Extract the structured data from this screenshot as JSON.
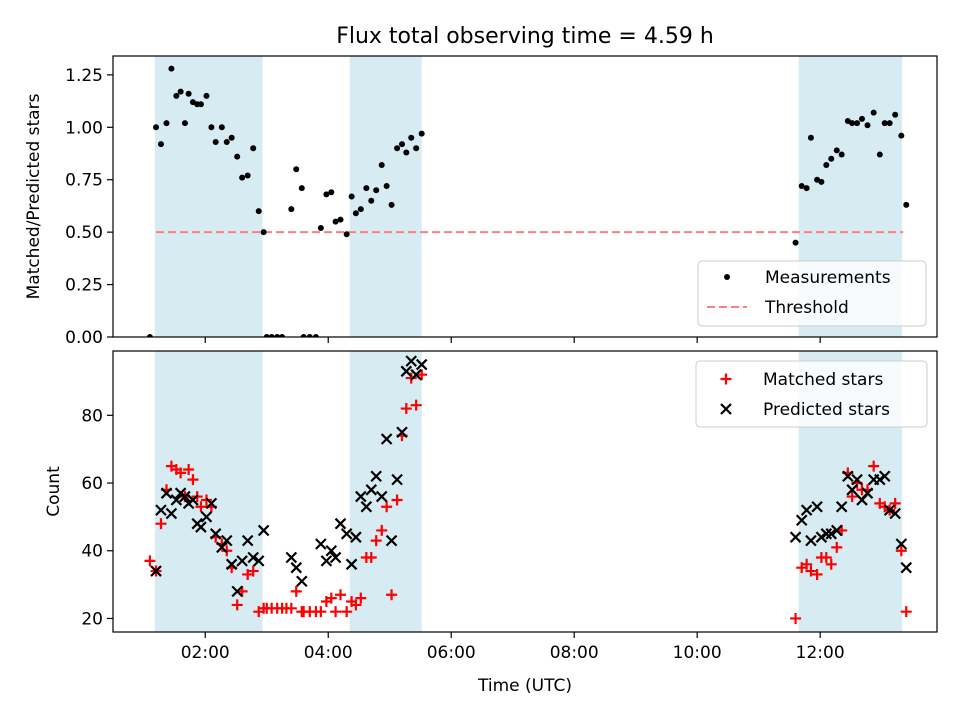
{
  "figure": {
    "title": "Flux total observing time = 4.59 h"
  },
  "chart_data": [
    {
      "type": "scatter",
      "title": "Flux total observing time = 4.59 h",
      "ylabel": "Matched/Predicted stars",
      "xlabel": "",
      "xlim": [
        0.5,
        13.9
      ],
      "ylim": [
        0.0,
        1.34
      ],
      "yticks": [
        0.0,
        0.25,
        0.5,
        0.75,
        1.0,
        1.25
      ],
      "ytick_labels": [
        "0.00",
        "0.25",
        "0.50",
        "0.75",
        "1.00",
        "1.25"
      ],
      "xticks": [
        2,
        4,
        6,
        8,
        10,
        12
      ],
      "shaded_intervals": [
        [
          1.18,
          2.93
        ],
        [
          4.35,
          5.52
        ],
        [
          11.65,
          13.33
        ]
      ],
      "threshold": 0.5,
      "legend": {
        "position": "lower right",
        "entries": [
          "Measurements",
          "Threshold"
        ]
      },
      "colors": {
        "measurements": "#000000",
        "threshold": "#ff7f7f",
        "shade": "#add8e6"
      },
      "series": [
        {
          "name": "Measurements",
          "points": [
            [
              1.1,
              0.0
            ],
            [
              1.2,
              1.0
            ],
            [
              1.28,
              0.92
            ],
            [
              1.37,
              1.02
            ],
            [
              1.45,
              1.28
            ],
            [
              1.53,
              1.15
            ],
            [
              1.6,
              1.17
            ],
            [
              1.67,
              1.02
            ],
            [
              1.73,
              1.16
            ],
            [
              1.8,
              1.12
            ],
            [
              1.87,
              1.11
            ],
            [
              1.93,
              1.11
            ],
            [
              2.02,
              1.15
            ],
            [
              2.1,
              1.0
            ],
            [
              2.17,
              0.93
            ],
            [
              2.27,
              1.0
            ],
            [
              2.35,
              0.93
            ],
            [
              2.43,
              0.95
            ],
            [
              2.52,
              0.86
            ],
            [
              2.6,
              0.76
            ],
            [
              2.69,
              0.77
            ],
            [
              2.78,
              0.9
            ],
            [
              2.87,
              0.6
            ],
            [
              2.95,
              0.5
            ],
            [
              3.0,
              0.0
            ],
            [
              3.08,
              0.0
            ],
            [
              3.17,
              0.0
            ],
            [
              3.25,
              0.0
            ],
            [
              3.4,
              0.61
            ],
            [
              3.48,
              0.8
            ],
            [
              3.57,
              0.71
            ],
            [
              3.6,
              0.0
            ],
            [
              3.7,
              0.0
            ],
            [
              3.8,
              0.0
            ],
            [
              3.88,
              0.52
            ],
            [
              3.97,
              0.68
            ],
            [
              4.05,
              0.69
            ],
            [
              4.12,
              0.55
            ],
            [
              4.2,
              0.56
            ],
            [
              4.3,
              0.49
            ],
            [
              4.38,
              0.67
            ],
            [
              4.45,
              0.59
            ],
            [
              4.53,
              0.61
            ],
            [
              4.62,
              0.71
            ],
            [
              4.7,
              0.65
            ],
            [
              4.78,
              0.7
            ],
            [
              4.87,
              0.82
            ],
            [
              4.95,
              0.72
            ],
            [
              5.03,
              0.63
            ],
            [
              5.12,
              0.9
            ],
            [
              5.2,
              0.92
            ],
            [
              5.27,
              0.88
            ],
            [
              5.35,
              0.95
            ],
            [
              5.43,
              0.9
            ],
            [
              5.52,
              0.97
            ],
            [
              11.6,
              0.45
            ],
            [
              11.7,
              0.72
            ],
            [
              11.78,
              0.71
            ],
            [
              11.85,
              0.95
            ],
            [
              11.95,
              0.75
            ],
            [
              12.02,
              0.74
            ],
            [
              12.1,
              0.82
            ],
            [
              12.18,
              0.85
            ],
            [
              12.27,
              0.89
            ],
            [
              12.35,
              0.87
            ],
            [
              12.45,
              1.03
            ],
            [
              12.52,
              1.02
            ],
            [
              12.6,
              1.02
            ],
            [
              12.68,
              1.04
            ],
            [
              12.77,
              1.01
            ],
            [
              12.87,
              1.07
            ],
            [
              12.97,
              0.87
            ],
            [
              13.05,
              1.02
            ],
            [
              13.13,
              1.02
            ],
            [
              13.22,
              1.06
            ],
            [
              13.32,
              0.96
            ],
            [
              13.4,
              0.63
            ]
          ]
        }
      ]
    },
    {
      "type": "scatter",
      "title": "",
      "xlabel": "Time (UTC)",
      "ylabel": "Count",
      "xlim": [
        0.5,
        13.9
      ],
      "ylim": [
        16,
        99
      ],
      "yticks": [
        20,
        40,
        60,
        80
      ],
      "xticks": [
        2,
        4,
        6,
        8,
        10,
        12
      ],
      "xtick_labels": [
        "02:00",
        "04:00",
        "06:00",
        "08:00",
        "10:00",
        "12:00"
      ],
      "shaded_intervals": [
        [
          1.18,
          2.93
        ],
        [
          4.35,
          5.52
        ],
        [
          11.65,
          13.33
        ]
      ],
      "legend": {
        "position": "upper right",
        "entries": [
          "Matched stars",
          "Predicted stars"
        ]
      },
      "colors": {
        "matched": "#ff0000",
        "predicted": "#000000",
        "shade": "#add8e6"
      },
      "series": [
        {
          "name": "Matched stars",
          "marker": "plus",
          "points": [
            [
              1.1,
              37
            ],
            [
              1.2,
              34
            ],
            [
              1.28,
              48
            ],
            [
              1.37,
              58
            ],
            [
              1.45,
              65
            ],
            [
              1.53,
              64
            ],
            [
              1.6,
              63
            ],
            [
              1.67,
              56
            ],
            [
              1.73,
              64
            ],
            [
              1.8,
              61
            ],
            [
              1.87,
              56
            ],
            [
              1.93,
              53
            ],
            [
              2.02,
              55
            ],
            [
              2.1,
              53
            ],
            [
              2.17,
              44
            ],
            [
              2.27,
              42
            ],
            [
              2.35,
              40
            ],
            [
              2.43,
              35
            ],
            [
              2.52,
              24
            ],
            [
              2.6,
              28
            ],
            [
              2.69,
              33
            ],
            [
              2.78,
              34
            ],
            [
              2.87,
              22
            ],
            [
              2.95,
              23
            ],
            [
              3.0,
              23
            ],
            [
              3.08,
              23
            ],
            [
              3.17,
              23
            ],
            [
              3.25,
              23
            ],
            [
              3.32,
              23
            ],
            [
              3.4,
              23
            ],
            [
              3.48,
              28
            ],
            [
              3.57,
              22
            ],
            [
              3.6,
              22
            ],
            [
              3.7,
              22
            ],
            [
              3.8,
              22
            ],
            [
              3.88,
              22
            ],
            [
              3.97,
              25
            ],
            [
              4.05,
              26
            ],
            [
              4.12,
              22
            ],
            [
              4.2,
              27
            ],
            [
              4.3,
              22
            ],
            [
              4.38,
              25
            ],
            [
              4.45,
              24
            ],
            [
              4.53,
              26
            ],
            [
              4.62,
              38
            ],
            [
              4.7,
              38
            ],
            [
              4.78,
              43
            ],
            [
              4.87,
              46
            ],
            [
              4.95,
              53
            ],
            [
              5.03,
              27
            ],
            [
              5.12,
              55
            ],
            [
              5.2,
              74
            ],
            [
              5.27,
              82
            ],
            [
              5.35,
              91
            ],
            [
              5.43,
              83
            ],
            [
              5.52,
              92
            ],
            [
              11.6,
              20
            ],
            [
              11.7,
              35
            ],
            [
              11.78,
              36
            ],
            [
              11.85,
              34
            ],
            [
              11.95,
              33
            ],
            [
              12.02,
              38
            ],
            [
              12.1,
              38
            ],
            [
              12.18,
              36
            ],
            [
              12.27,
              41
            ],
            [
              12.35,
              46
            ],
            [
              12.45,
              63
            ],
            [
              12.52,
              56
            ],
            [
              12.6,
              60
            ],
            [
              12.68,
              58
            ],
            [
              12.77,
              58
            ],
            [
              12.87,
              65
            ],
            [
              12.97,
              54
            ],
            [
              13.05,
              53
            ],
            [
              13.13,
              52
            ],
            [
              13.22,
              54
            ],
            [
              13.32,
              40
            ],
            [
              13.4,
              22
            ]
          ]
        },
        {
          "name": "Predicted stars",
          "marker": "x",
          "points": [
            [
              1.2,
              34
            ],
            [
              1.28,
              52
            ],
            [
              1.37,
              57
            ],
            [
              1.45,
              51
            ],
            [
              1.53,
              55
            ],
            [
              1.6,
              57
            ],
            [
              1.67,
              56
            ],
            [
              1.73,
              54
            ],
            [
              1.8,
              55
            ],
            [
              1.87,
              48
            ],
            [
              1.93,
              47
            ],
            [
              2.02,
              50
            ],
            [
              2.1,
              54
            ],
            [
              2.17,
              45
            ],
            [
              2.27,
              41
            ],
            [
              2.35,
              43
            ],
            [
              2.43,
              36
            ],
            [
              2.52,
              28
            ],
            [
              2.6,
              37
            ],
            [
              2.69,
              43
            ],
            [
              2.78,
              38
            ],
            [
              2.87,
              37
            ],
            [
              2.95,
              46
            ],
            [
              3.4,
              38
            ],
            [
              3.48,
              35
            ],
            [
              3.57,
              31
            ],
            [
              3.88,
              42
            ],
            [
              3.97,
              37
            ],
            [
              4.05,
              40
            ],
            [
              4.12,
              38
            ],
            [
              4.2,
              48
            ],
            [
              4.3,
              45
            ],
            [
              4.38,
              36
            ],
            [
              4.45,
              44
            ],
            [
              4.53,
              56
            ],
            [
              4.62,
              53
            ],
            [
              4.7,
              58
            ],
            [
              4.78,
              62
            ],
            [
              4.87,
              56
            ],
            [
              4.95,
              73
            ],
            [
              5.03,
              43
            ],
            [
              5.12,
              61
            ],
            [
              5.2,
              75
            ],
            [
              5.27,
              93
            ],
            [
              5.35,
              96
            ],
            [
              5.43,
              92
            ],
            [
              5.52,
              95
            ],
            [
              11.6,
              44
            ],
            [
              11.7,
              49
            ],
            [
              11.78,
              52
            ],
            [
              11.85,
              43
            ],
            [
              11.95,
              53
            ],
            [
              12.02,
              44
            ],
            [
              12.1,
              45
            ],
            [
              12.18,
              45
            ],
            [
              12.27,
              46
            ],
            [
              12.35,
              53
            ],
            [
              12.45,
              62
            ],
            [
              12.52,
              58
            ],
            [
              12.6,
              61
            ],
            [
              12.68,
              55
            ],
            [
              12.77,
              57
            ],
            [
              12.87,
              61
            ],
            [
              12.97,
              61
            ],
            [
              13.05,
              62
            ],
            [
              13.13,
              52
            ],
            [
              13.22,
              51
            ],
            [
              13.32,
              42
            ],
            [
              13.4,
              35
            ]
          ]
        }
      ]
    }
  ]
}
